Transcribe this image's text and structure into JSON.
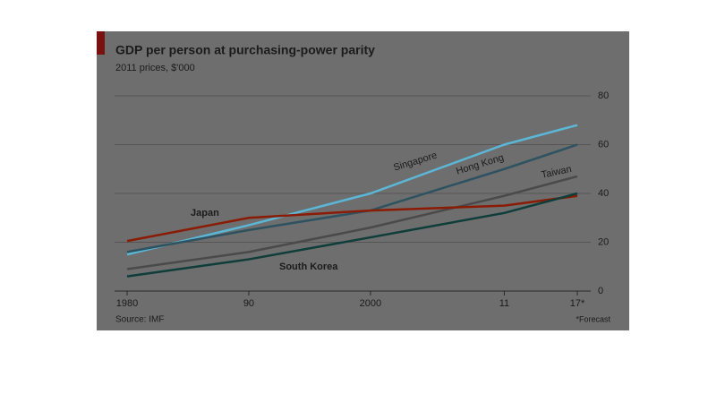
{
  "chart_data": {
    "type": "line",
    "title": "GDP per person at purchasing-power parity",
    "subtitle": "2011 prices, $'000",
    "source": "Source: IMF",
    "footnote": "*Forecast",
    "x": [
      1980,
      1990,
      2000,
      2011,
      2017
    ],
    "xlim": [
      1980,
      2017
    ],
    "xticks": [
      1980,
      {
        "value": 1990,
        "label": "90"
      },
      2000,
      {
        "value": 2011,
        "label": "11"
      },
      {
        "value": 2017,
        "label": "17*"
      }
    ],
    "ylim": [
      0,
      80
    ],
    "yticks": [
      0,
      20,
      40,
      60,
      80
    ],
    "grid": true,
    "series": [
      {
        "name": "Singapore",
        "color": "#5cb6d6",
        "values": [
          15,
          27,
          40,
          60,
          68
        ]
      },
      {
        "name": "Hong Kong",
        "color": "#2e5260",
        "values": [
          16,
          25,
          33,
          50,
          60
        ]
      },
      {
        "name": "Taiwan",
        "color": "#4a4a4a",
        "values": [
          9,
          16,
          26,
          39,
          47
        ]
      },
      {
        "name": "Japan",
        "color": "#8a1c05",
        "values": [
          20.5,
          30,
          33,
          35,
          39
        ]
      },
      {
        "name": "South Korea",
        "color": "#0f3d3a",
        "values": [
          6,
          13,
          22,
          32,
          40
        ]
      }
    ]
  }
}
